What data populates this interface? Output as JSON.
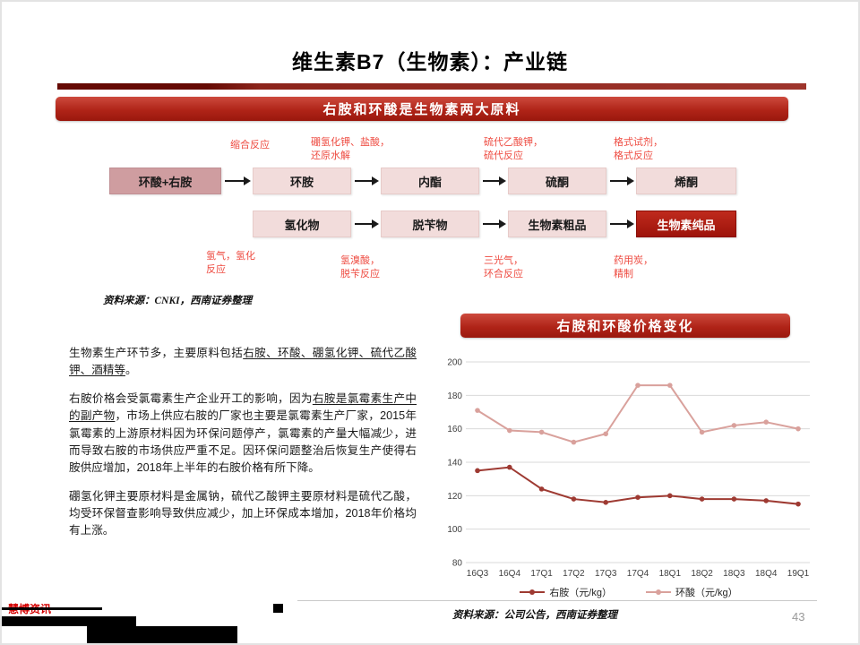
{
  "slide": {
    "title": "维生素B7（生物素）：产业链",
    "page_number": "43",
    "footer_source": "资料来源：公司公告，西南证券整理",
    "watermark": "慧博资讯"
  },
  "banners": {
    "materials": "右胺和环酸是生物素两大原料",
    "price": "右胺和环酸价格变化"
  },
  "flow": {
    "row1": [
      "环酸+右胺",
      "环胺",
      "内酯",
      "硫酮",
      "烯酮"
    ],
    "row2": [
      "氢化物",
      "脱苄物",
      "生物素粗品",
      "生物素纯品"
    ],
    "top_labels": [
      "缩合反应",
      "硼氢化钾、盐酸，\n还原水解",
      "硫代乙酸钾，\n硫代反应",
      "格式试剂，\n格式反应"
    ],
    "bottom_labels": [
      "氢气，氢化\n反应",
      "氢溴酸，\n脱苄反应",
      "三光气，\n环合反应",
      "药用炭，\n精制"
    ],
    "source": "资料来源：CNKI，西南证券整理"
  },
  "analysis": {
    "paragraphs": [
      [
        {
          "t": "生物素生产环节多，主要原料包括"
        },
        {
          "t": "右胺、环酸、硼氢化钾、硫代乙酸钾、酒精等",
          "u": true
        },
        {
          "t": "。"
        }
      ],
      [
        {
          "t": "右胺价格会受氯霉素生产企业开工的影响，因为"
        },
        {
          "t": "右胺是氯霉素生产中的副产物",
          "u": true
        },
        {
          "t": "，市场上供应右胺的厂家也主要是氯霉素生产厂家，2015年氯霉素的上游原材料因为环保问题停产，氯霉素的产量大幅减少，进而导致右胺的市场供应严重不足。因环保问题整治后恢复生产使得右胺供应增加，2018年上半年的右胺价格有所下降。"
        }
      ],
      [
        {
          "t": "硼氢化钾主要原材料是金属钠，硫代乙酸钾主要原材料是硫代乙酸，均受环保督查影响导致供应减少，加上环保成本增加，2018年价格均有上涨。"
        }
      ]
    ]
  },
  "chart_data": {
    "type": "line",
    "title": "右胺和环酸价格变化",
    "categories": [
      "16Q3",
      "16Q4",
      "17Q1",
      "17Q2",
      "17Q3",
      "17Q4",
      "18Q1",
      "18Q2",
      "18Q3",
      "18Q4",
      "19Q1"
    ],
    "series": [
      {
        "name": "右胺（元/kg）",
        "color": "#9e3a32",
        "values": [
          135,
          137,
          124,
          118,
          116,
          119,
          120,
          118,
          118,
          117,
          115
        ]
      },
      {
        "name": "环酸（元/kg）",
        "color": "#d9a19c",
        "values": [
          171,
          159,
          158,
          152,
          157,
          186,
          186,
          158,
          162,
          164,
          160
        ]
      }
    ],
    "ylim": [
      80,
      200
    ],
    "ytick_step": 20,
    "grid": true,
    "legend_position": "bottom"
  }
}
